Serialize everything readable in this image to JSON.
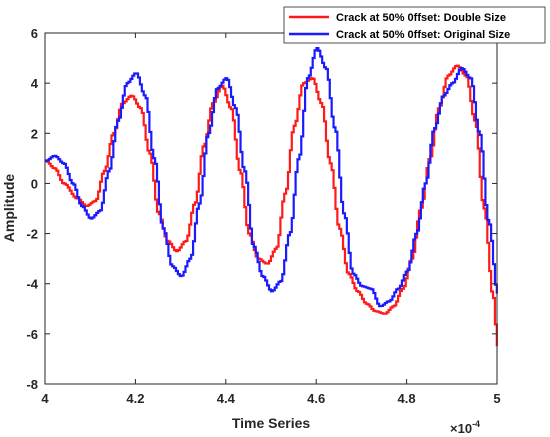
{
  "chart_data": {
    "type": "line",
    "title": "",
    "xlabel": "Time Series",
    "ylabel": "Amplitude",
    "x_exponent_label": "×10",
    "x_exponent_power": "-4",
    "xlim": [
      4.0,
      5.0
    ],
    "ylim": [
      -8,
      6
    ],
    "xticks": [
      4.0,
      4.2,
      4.4,
      4.6,
      4.8,
      5.0
    ],
    "xtick_labels": [
      "4",
      "4.2",
      "4.4",
      "4.6",
      "4.8",
      "5"
    ],
    "yticks": [
      -8,
      -6,
      -4,
      -2,
      0,
      2,
      4,
      6
    ],
    "ytick_labels": [
      "-8",
      "-6",
      "-4",
      "-2",
      "0",
      "2",
      "4",
      "6"
    ],
    "grid": false,
    "legend_position": "top-right",
    "line_style": "step",
    "x_units_scale": "1e-4",
    "series": [
      {
        "name": "Crack at 50% 0ffset: Double Size",
        "color": "#ff1a1a",
        "x": [
          4.0,
          4.02,
          4.04,
          4.07,
          4.09,
          4.11,
          4.13,
          4.15,
          4.17,
          4.19,
          4.21,
          4.23,
          4.25,
          4.27,
          4.29,
          4.31,
          4.33,
          4.35,
          4.37,
          4.39,
          4.41,
          4.43,
          4.45,
          4.47,
          4.49,
          4.51,
          4.53,
          4.55,
          4.57,
          4.59,
          4.61,
          4.63,
          4.65,
          4.67,
          4.69,
          4.71,
          4.73,
          4.75,
          4.77,
          4.79,
          4.81,
          4.83,
          4.85,
          4.87,
          4.89,
          4.91,
          4.93,
          4.95,
          4.97,
          4.99,
          5.0
        ],
        "y": [
          0.9,
          0.6,
          0.0,
          -0.6,
          -0.9,
          -0.7,
          0.5,
          2.0,
          3.2,
          3.5,
          3.0,
          1.2,
          -1.2,
          -2.3,
          -2.7,
          -2.3,
          -0.8,
          1.5,
          3.2,
          3.9,
          3.0,
          0.5,
          -2.0,
          -3.0,
          -3.2,
          -2.6,
          -0.4,
          2.3,
          4.0,
          4.2,
          3.2,
          0.8,
          -1.8,
          -3.6,
          -4.3,
          -4.8,
          -5.1,
          -5.2,
          -4.9,
          -4.2,
          -3.0,
          -1.0,
          1.0,
          3.0,
          4.3,
          4.7,
          4.3,
          2.5,
          -1.0,
          -4.5,
          -6.5
        ]
      },
      {
        "name": "Crack at 50% 0ffset: Original Size",
        "color": "#1a1aff",
        "x": [
          4.0,
          4.02,
          4.04,
          4.06,
          4.08,
          4.1,
          4.12,
          4.14,
          4.16,
          4.18,
          4.2,
          4.22,
          4.24,
          4.26,
          4.28,
          4.3,
          4.32,
          4.34,
          4.36,
          4.38,
          4.4,
          4.42,
          4.44,
          4.46,
          4.48,
          4.5,
          4.52,
          4.54,
          4.56,
          4.58,
          4.6,
          4.62,
          4.64,
          4.66,
          4.68,
          4.7,
          4.72,
          4.74,
          4.76,
          4.78,
          4.8,
          4.82,
          4.84,
          4.86,
          4.88,
          4.9,
          4.92,
          4.94,
          4.96,
          4.98,
          5.0
        ],
        "y": [
          0.9,
          1.1,
          0.8,
          0.0,
          -0.9,
          -1.4,
          -1.1,
          0.5,
          2.5,
          4.0,
          4.4,
          3.5,
          1.0,
          -1.8,
          -3.3,
          -3.7,
          -3.0,
          -0.8,
          2.0,
          3.8,
          4.2,
          3.0,
          0.5,
          -2.5,
          -3.7,
          -4.3,
          -3.9,
          -2.0,
          1.0,
          4.2,
          5.4,
          4.6,
          2.2,
          -1.2,
          -3.6,
          -4.1,
          -4.2,
          -4.9,
          -4.7,
          -4.2,
          -3.5,
          -2.0,
          0.0,
          2.2,
          3.5,
          4.0,
          4.6,
          4.2,
          2.0,
          -1.5,
          -4.4
        ]
      }
    ]
  }
}
